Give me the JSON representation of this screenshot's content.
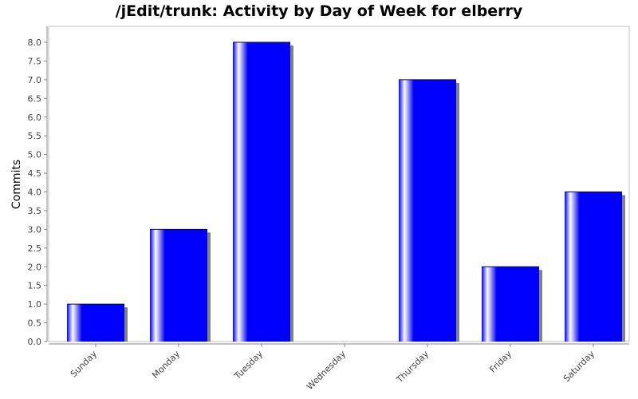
{
  "chart_data": {
    "type": "bar",
    "title": "/jEdit/trunk: Activity by Day of Week for elberry",
    "xlabel": "",
    "ylabel": "Commits",
    "categories": [
      "Sunday",
      "Monday",
      "Tuesday",
      "Wednesday",
      "Thursday",
      "Friday",
      "Saturday"
    ],
    "values": [
      1,
      3,
      8,
      0,
      7,
      2,
      4
    ],
    "ylim": [
      0,
      8.5
    ],
    "yticks": [
      "0.0",
      "0.5",
      "1.0",
      "1.5",
      "2.0",
      "2.5",
      "3.0",
      "3.5",
      "4.0",
      "4.5",
      "5.0",
      "5.5",
      "6.0",
      "6.5",
      "7.0",
      "7.5",
      "8.0"
    ],
    "grid": false,
    "legend": "none",
    "colors": {
      "bar": "#0000ff",
      "bar_highlight": "#ffffff",
      "shadow": "#808080",
      "axis": "#888888"
    }
  }
}
